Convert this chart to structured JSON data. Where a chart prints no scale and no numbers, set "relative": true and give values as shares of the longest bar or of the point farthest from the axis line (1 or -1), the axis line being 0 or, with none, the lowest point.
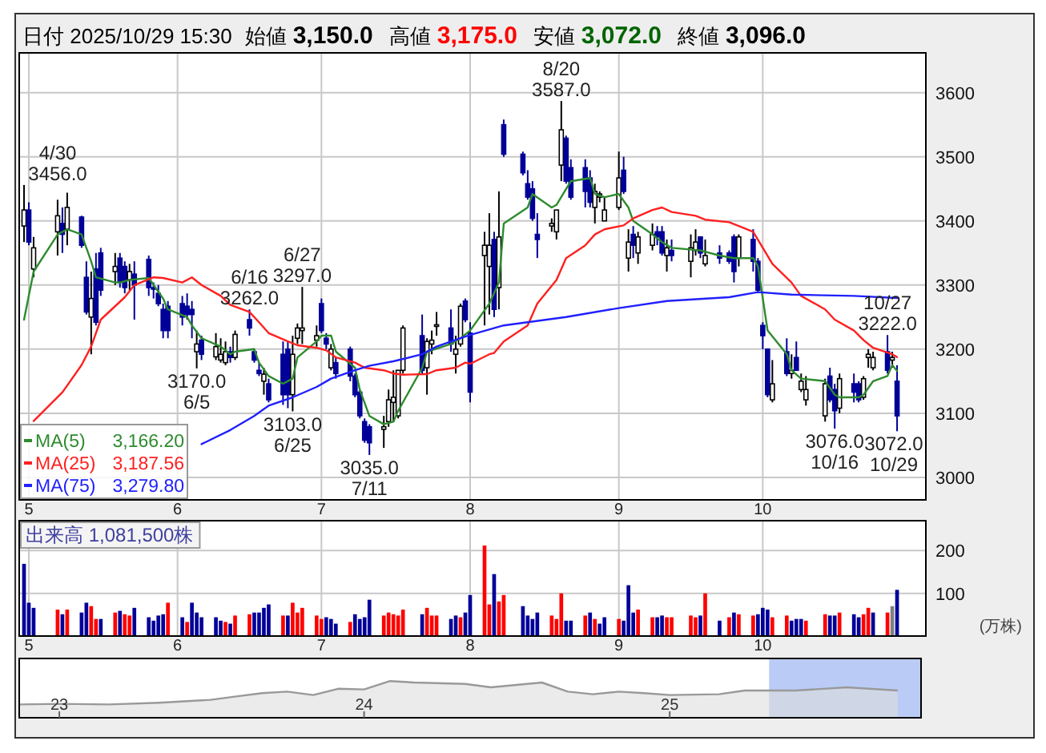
{
  "chart_data": [
    {
      "type": "candlestick",
      "title": "日付 2025/10/29 15:30",
      "grid": true,
      "legend": "bottom left",
      "annotations": [
        "始値 3,150.0",
        "高値 3,175.0",
        "安値 3,072.0",
        "終値 3,096.0",
        {
          "text": "4/30\n3456.0",
          "x": "2025-04-30",
          "y": 3456
        },
        {
          "text": "3170.0\n6/5",
          "x": "2025-06-05",
          "y": 3170
        },
        {
          "text": "6/16\n3262.0",
          "x": "2025-06-16",
          "y": 3262
        },
        {
          "text": "3103.0\n6/25",
          "x": "2025-06-25",
          "y": 3103
        },
        {
          "text": "6/27\n3297.0",
          "x": "2025-06-27",
          "y": 3297
        },
        {
          "text": "3035.0\n7/11",
          "x": "2025-07-11",
          "y": 3035
        },
        {
          "text": "8/20\n3587.0",
          "x": "2025-08-20",
          "y": 3587
        },
        {
          "text": "10/27\n3222.0",
          "x": "2025-10-27",
          "y": 3222
        },
        {
          "text": "3076.0\n10/16",
          "x": "2025-10-16",
          "y": 3076
        },
        {
          "text": "3072.0\n10/29",
          "x": "2025-10-29",
          "y": 3072
        }
      ],
      "x": [
        "2025-04-30",
        "2025-05-01",
        "2025-05-02",
        "2025-05-07",
        "2025-05-08",
        "2025-05-09",
        "2025-05-12",
        "2025-05-13",
        "2025-05-14",
        "2025-05-15",
        "2025-05-16",
        "2025-05-19",
        "2025-05-20",
        "2025-05-21",
        "2025-05-22",
        "2025-05-23",
        "2025-05-26",
        "2025-05-27",
        "2025-05-28",
        "2025-05-29",
        "2025-05-30",
        "2025-06-02",
        "2025-06-03",
        "2025-06-04",
        "2025-06-05",
        "2025-06-06",
        "2025-06-09",
        "2025-06-10",
        "2025-06-11",
        "2025-06-12",
        "2025-06-13",
        "2025-06-16",
        "2025-06-17",
        "2025-06-18",
        "2025-06-19",
        "2025-06-20",
        "2025-06-23",
        "2025-06-24",
        "2025-06-25",
        "2025-06-26",
        "2025-06-27",
        "2025-06-30",
        "2025-07-01",
        "2025-07-02",
        "2025-07-03",
        "2025-07-04",
        "2025-07-07",
        "2025-07-08",
        "2025-07-09",
        "2025-07-10",
        "2025-07-11",
        "2025-07-14",
        "2025-07-15",
        "2025-07-16",
        "2025-07-17",
        "2025-07-18",
        "2025-07-22",
        "2025-07-23",
        "2025-07-24",
        "2025-07-25",
        "2025-07-28",
        "2025-07-29",
        "2025-07-30",
        "2025-07-31",
        "2025-08-01",
        "2025-08-04",
        "2025-08-05",
        "2025-08-06",
        "2025-08-07",
        "2025-08-08",
        "2025-08-12",
        "2025-08-13",
        "2025-08-14",
        "2025-08-15",
        "2025-08-18",
        "2025-08-19",
        "2025-08-20",
        "2025-08-21",
        "2025-08-22",
        "2025-08-25",
        "2025-08-26",
        "2025-08-27",
        "2025-08-28",
        "2025-08-29",
        "2025-09-01",
        "2025-09-02",
        "2025-09-03",
        "2025-09-04",
        "2025-09-05",
        "2025-09-08",
        "2025-09-09",
        "2025-09-10",
        "2025-09-11",
        "2025-09-12",
        "2025-09-16",
        "2025-09-17",
        "2025-09-18",
        "2025-09-19",
        "2025-09-22",
        "2025-09-24",
        "2025-09-25",
        "2025-09-26",
        "2025-09-29",
        "2025-09-30",
        "2025-10-01",
        "2025-10-02",
        "2025-10-03",
        "2025-10-06",
        "2025-10-07",
        "2025-10-08",
        "2025-10-09",
        "2025-10-10",
        "2025-10-14",
        "2025-10-15",
        "2025-10-16",
        "2025-10-17",
        "2025-10-20",
        "2025-10-21",
        "2025-10-22",
        "2025-10-23",
        "2025-10-24",
        "2025-10-27",
        "2025-10-28",
        "2025-10-29"
      ],
      "ohlc": [
        [
          3392,
          3456,
          3367,
          3417
        ],
        [
          3417,
          3429,
          3362,
          3367
        ],
        [
          3325,
          3375,
          3312,
          3358
        ],
        [
          3383,
          3433,
          3346,
          3408
        ],
        [
          3396,
          3421,
          3350,
          3379
        ],
        [
          3387,
          3444,
          3362,
          3421
        ],
        [
          3406,
          3408,
          3358,
          3362
        ],
        [
          3312,
          3337,
          3254,
          3258
        ],
        [
          3250,
          3321,
          3192,
          3279
        ],
        [
          3325,
          3350,
          3237,
          3242
        ],
        [
          3350,
          3358,
          3283,
          3292
        ],
        [
          3321,
          3350,
          3300,
          3329
        ],
        [
          3342,
          3350,
          3296,
          3304
        ],
        [
          3329,
          3337,
          3287,
          3296
        ],
        [
          3308,
          3333,
          3292,
          3321
        ],
        [
          3317,
          3337,
          3246,
          3300
        ],
        [
          3340,
          3346,
          3283,
          3296
        ],
        [
          3296,
          3304,
          3279,
          3294
        ],
        [
          3287,
          3300,
          3267,
          3271
        ],
        [
          3262,
          3271,
          3217,
          3229
        ],
        [
          3267,
          3275,
          3217,
          3229
        ],
        [
          3271,
          3283,
          3237,
          3250
        ],
        [
          3267,
          3287,
          3246,
          3254
        ],
        [
          3262,
          3275,
          3217,
          3254
        ],
        [
          3196,
          3229,
          3170,
          3208
        ],
        [
          3214,
          3221,
          3183,
          3192
        ],
        [
          3188,
          3225,
          3183,
          3204
        ],
        [
          3183,
          3217,
          3179,
          3192
        ],
        [
          3179,
          3212,
          3175,
          3196
        ],
        [
          3196,
          3204,
          3179,
          3187
        ],
        [
          3187,
          3229,
          3183,
          3223
        ],
        [
          3246,
          3262,
          3221,
          3233
        ],
        [
          3196,
          3200,
          3179,
          3183
        ],
        [
          3167,
          3179,
          3158,
          3162
        ],
        [
          3150,
          3171,
          3129,
          3161
        ],
        [
          3146,
          3154,
          3117,
          3121
        ],
        [
          3192,
          3212,
          3113,
          3129
        ],
        [
          3200,
          3212,
          3108,
          3129
        ],
        [
          3129,
          3221,
          3103,
          3192
        ],
        [
          3217,
          3240,
          3208,
          3233
        ],
        [
          3229,
          3297,
          3208,
          3233
        ],
        [
          3214,
          3237,
          3204,
          3221
        ],
        [
          3271,
          3279,
          3225,
          3229
        ],
        [
          3217,
          3225,
          3200,
          3208
        ],
        [
          3171,
          3208,
          3167,
          3200
        ],
        [
          3179,
          3187,
          3154,
          3162
        ],
        [
          3200,
          3204,
          3150,
          3158
        ],
        [
          3158,
          3162,
          3125,
          3129
        ],
        [
          3133,
          3137,
          3092,
          3096
        ],
        [
          3087,
          3092,
          3054,
          3058
        ],
        [
          3079,
          3083,
          3035,
          3054
        ],
        [
          3075,
          3096,
          3046,
          3079
        ],
        [
          3087,
          3137,
          3079,
          3121
        ],
        [
          3117,
          3167,
          3087,
          3125
        ],
        [
          3096,
          3167,
          3092,
          3167
        ],
        [
          3167,
          3237,
          3162,
          3233
        ],
        [
          3221,
          3254,
          3162,
          3167
        ],
        [
          3171,
          3217,
          3129,
          3212
        ],
        [
          3208,
          3229,
          3192,
          3214
        ],
        [
          3237,
          3258,
          3221,
          3238
        ],
        [
          3233,
          3262,
          3196,
          3208
        ],
        [
          3192,
          3221,
          3162,
          3200
        ],
        [
          3208,
          3271,
          3204,
          3267
        ],
        [
          3275,
          3279,
          3242,
          3246
        ],
        [
          3225,
          3242,
          3117,
          3133
        ],
        [
          3346,
          3383,
          3237,
          3362
        ],
        [
          3329,
          3412,
          3254,
          3362
        ],
        [
          3371,
          3383,
          3250,
          3262
        ],
        [
          3296,
          3446,
          3262,
          3375
        ],
        [
          3550,
          3558,
          3500,
          3504
        ],
        [
          3504,
          3508,
          3471,
          3475
        ],
        [
          3458,
          3479,
          3433,
          3437
        ],
        [
          3450,
          3462,
          3400,
          3404
        ],
        [
          3379,
          3412,
          3342,
          3371
        ],
        [
          3392,
          3404,
          3383,
          3396
        ],
        [
          3383,
          3417,
          3371,
          3417
        ],
        [
          3487,
          3587,
          3462,
          3542
        ],
        [
          3529,
          3533,
          3458,
          3462
        ],
        [
          3483,
          3496,
          3433,
          3437
        ],
        [
          3483,
          3496,
          3421,
          3446
        ],
        [
          3467,
          3479,
          3421,
          3429
        ],
        [
          3421,
          3458,
          3396,
          3446
        ],
        [
          3437,
          3446,
          3429,
          3442
        ],
        [
          3400,
          3437,
          3400,
          3417
        ],
        [
          3421,
          3508,
          3417,
          3467
        ],
        [
          3479,
          3500,
          3442,
          3446
        ],
        [
          3342,
          3387,
          3321,
          3367
        ],
        [
          3379,
          3392,
          3342,
          3362
        ],
        [
          3350,
          3383,
          3333,
          3375
        ],
        [
          3362,
          3396,
          3354,
          3379
        ],
        [
          3383,
          3392,
          3362,
          3375
        ],
        [
          3383,
          3392,
          3346,
          3350
        ],
        [
          3346,
          3371,
          3321,
          3358
        ],
        [
          3354,
          3371,
          3337,
          3346
        ],
        [
          3337,
          3379,
          3312,
          3358
        ],
        [
          3354,
          3387,
          3346,
          3367
        ],
        [
          3375,
          3375,
          3342,
          3350
        ],
        [
          3333,
          3371,
          3329,
          3346
        ],
        [
          3350,
          3362,
          3333,
          3342
        ],
        [
          3350,
          3354,
          3333,
          3337
        ],
        [
          3375,
          3379,
          3304,
          3321
        ],
        [
          3342,
          3379,
          3329,
          3375
        ],
        [
          3371,
          3387,
          3321,
          3337
        ],
        [
          3337,
          3342,
          3287,
          3292
        ],
        [
          3237,
          3242,
          3200,
          3221
        ],
        [
          3200,
          3200,
          3125,
          3129
        ],
        [
          3121,
          3183,
          3117,
          3146
        ],
        [
          3196,
          3217,
          3158,
          3162
        ],
        [
          3162,
          3192,
          3154,
          3167
        ],
        [
          3187,
          3212,
          3167,
          3167
        ],
        [
          3137,
          3162,
          3133,
          3150
        ],
        [
          3121,
          3158,
          3112,
          3137
        ],
        [
          3096,
          3154,
          3087,
          3146
        ],
        [
          3158,
          3171,
          3117,
          3121
        ],
        [
          3137,
          3146,
          3076,
          3104
        ],
        [
          3108,
          3162,
          3100,
          3154
        ],
        [
          3146,
          3162,
          3117,
          3133
        ],
        [
          3146,
          3150,
          3117,
          3121
        ],
        [
          3125,
          3158,
          3121,
          3154
        ],
        [
          3187,
          3200,
          3171,
          3192
        ],
        [
          3171,
          3196,
          3167,
          3187
        ],
        [
          3196,
          3222,
          3162,
          3167
        ],
        [
          3183,
          3196,
          3171,
          3187
        ],
        [
          3150,
          3175,
          3072,
          3096
        ]
      ],
      "series": [
        {
          "name": "MA(5) 3,166.20",
          "type": "line",
          "color": "#2e8b2e",
          "x": [
            "2025-04-30",
            "2025-05-02",
            "2025-05-07",
            "2025-05-09",
            "2025-05-12",
            "2025-05-14",
            "2025-05-15",
            "2025-05-19",
            "2025-05-20",
            "2025-05-22",
            "2025-05-26",
            "2025-05-27",
            "2025-05-29",
            "2025-05-30",
            "2025-06-03",
            "2025-06-04",
            "2025-06-06",
            "2025-06-10",
            "2025-06-12",
            "2025-06-13",
            "2025-06-17",
            "2025-06-18",
            "2025-06-20",
            "2025-06-23",
            "2025-06-25",
            "2025-06-26",
            "2025-06-30",
            "2025-07-01",
            "2025-07-03",
            "2025-07-04",
            "2025-07-08",
            "2025-07-09",
            "2025-07-11",
            "2025-07-14",
            "2025-07-16",
            "2025-07-17",
            "2025-07-22",
            "2025-07-23",
            "2025-07-28",
            "2025-07-30",
            "2025-08-01",
            "2025-08-05",
            "2025-08-07",
            "2025-08-08",
            "2025-08-13",
            "2025-08-14",
            "2025-08-18",
            "2025-08-19",
            "2025-08-21",
            "2025-08-22",
            "2025-08-26",
            "2025-08-27",
            "2025-08-29",
            "2025-09-01",
            "2025-09-03",
            "2025-09-04",
            "2025-09-08",
            "2025-09-10",
            "2025-09-12",
            "2025-09-18",
            "2025-09-22",
            "2025-09-25",
            "2025-09-29",
            "2025-09-30",
            "2025-10-01",
            "2025-10-02",
            "2025-10-06",
            "2025-10-07",
            "2025-10-09",
            "2025-10-14",
            "2025-10-16",
            "2025-10-17",
            "2025-10-21",
            "2025-10-22",
            "2025-10-24",
            "2025-10-27",
            "2025-10-28",
            "2025-10-29"
          ],
          "values": [
            3246,
            3321,
            3379,
            3387,
            3379,
            3337,
            3312,
            3304,
            3304,
            3308,
            3311,
            3300,
            3279,
            3262,
            3250,
            3237,
            3217,
            3204,
            3192,
            3196,
            3200,
            3179,
            3158,
            3146,
            3154,
            3187,
            3212,
            3221,
            3221,
            3196,
            3171,
            3137,
            3096,
            3083,
            3087,
            3104,
            3171,
            3196,
            3208,
            3217,
            3229,
            3271,
            3304,
            3396,
            3421,
            3442,
            3421,
            3425,
            3450,
            3462,
            3467,
            3442,
            3437,
            3442,
            3421,
            3400,
            3379,
            3367,
            3358,
            3354,
            3346,
            3342,
            3342,
            3329,
            3279,
            3229,
            3192,
            3167,
            3154,
            3150,
            3129,
            3125,
            3125,
            3129,
            3150,
            3158,
            3175,
            3166.2
          ]
        },
        {
          "name": "MA(25) 3,187.56",
          "type": "line",
          "color": "#ff2020",
          "x": [
            "2025-05-02",
            "2025-05-08",
            "2025-05-12",
            "2025-05-14",
            "2025-05-16",
            "2025-05-21",
            "2025-05-23",
            "2025-05-27",
            "2025-05-29",
            "2025-06-02",
            "2025-06-04",
            "2025-06-06",
            "2025-06-10",
            "2025-06-12",
            "2025-06-16",
            "2025-06-18",
            "2025-06-20",
            "2025-06-24",
            "2025-06-26",
            "2025-06-30",
            "2025-07-02",
            "2025-07-04",
            "2025-07-08",
            "2025-07-10",
            "2025-07-14",
            "2025-07-16",
            "2025-07-18",
            "2025-07-23",
            "2025-07-25",
            "2025-07-29",
            "2025-07-31",
            "2025-08-01",
            "2025-08-05",
            "2025-08-06",
            "2025-08-08",
            "2025-08-13",
            "2025-08-15",
            "2025-08-19",
            "2025-08-21",
            "2025-08-25",
            "2025-08-27",
            "2025-08-29",
            "2025-09-02",
            "2025-09-04",
            "2025-09-08",
            "2025-09-10",
            "2025-09-12",
            "2025-09-17",
            "2025-09-19",
            "2025-09-24",
            "2025-09-26",
            "2025-09-29",
            "2025-10-01",
            "2025-10-03",
            "2025-10-07",
            "2025-10-09",
            "2025-10-14",
            "2025-10-16",
            "2025-10-20",
            "2025-10-22",
            "2025-10-24",
            "2025-10-28",
            "2025-10-29"
          ],
          "values": [
            3088,
            3133,
            3175,
            3204,
            3246,
            3281,
            3300,
            3312,
            3311,
            3304,
            3312,
            3300,
            3283,
            3269,
            3258,
            3242,
            3225,
            3212,
            3206,
            3202,
            3198,
            3187,
            3179,
            3171,
            3167,
            3162,
            3160,
            3161,
            3167,
            3171,
            3179,
            3177,
            3192,
            3194,
            3212,
            3237,
            3271,
            3308,
            3342,
            3362,
            3379,
            3387,
            3393,
            3404,
            3417,
            3421,
            3414,
            3408,
            3402,
            3398,
            3392,
            3383,
            3358,
            3333,
            3304,
            3283,
            3262,
            3246,
            3229,
            3214,
            3202,
            3192,
            3187.56
          ]
        },
        {
          "name": "MA(75) 3,279.80",
          "type": "line",
          "color": "#2020ff",
          "x": [
            "2025-06-06",
            "2025-06-12",
            "2025-06-17",
            "2025-06-20",
            "2025-06-25",
            "2025-06-30",
            "2025-07-03",
            "2025-07-08",
            "2025-07-11",
            "2025-07-16",
            "2025-07-22",
            "2025-07-25",
            "2025-07-30",
            "2025-08-01",
            "2025-08-08",
            "2025-08-21",
            "2025-09-01",
            "2025-09-11",
            "2025-09-24",
            "2025-09-30",
            "2025-10-07",
            "2025-10-20",
            "2025-10-29"
          ],
          "values": [
            3052,
            3074,
            3096,
            3112,
            3125,
            3141,
            3154,
            3167,
            3174,
            3181,
            3192,
            3204,
            3217,
            3222,
            3237,
            3250,
            3264,
            3275,
            3281,
            3289,
            3285,
            3283,
            3279.8
          ]
        }
      ],
      "xlim": [
        "2025-04-29",
        "2025-11-04"
      ],
      "xticks": [
        {
          "value": "2025-05-01",
          "label": "5"
        },
        {
          "value": "2025-06-01",
          "label": "6"
        },
        {
          "value": "2025-07-01",
          "label": "7"
        },
        {
          "value": "2025-08-01",
          "label": "8"
        },
        {
          "value": "2025-09-01",
          "label": "9"
        },
        {
          "value": "2025-10-01",
          "label": "10"
        }
      ],
      "ylim": [
        2965,
        3662
      ],
      "yticks": [
        3000,
        3100,
        3200,
        3300,
        3400,
        3500,
        3600
      ]
    },
    {
      "type": "bar",
      "title": "出来高 1,081,500株",
      "ylabel": "(万株)",
      "grid": true,
      "x": [
        "2025-04-30",
        "2025-05-01",
        "2025-05-02",
        "2025-05-07",
        "2025-05-08",
        "2025-05-09",
        "2025-05-12",
        "2025-05-13",
        "2025-05-14",
        "2025-05-15",
        "2025-05-16",
        "2025-05-19",
        "2025-05-20",
        "2025-05-21",
        "2025-05-22",
        "2025-05-23",
        "2025-05-26",
        "2025-05-27",
        "2025-05-28",
        "2025-05-29",
        "2025-05-30",
        "2025-06-02",
        "2025-06-03",
        "2025-06-04",
        "2025-06-05",
        "2025-06-06",
        "2025-06-09",
        "2025-06-10",
        "2025-06-11",
        "2025-06-12",
        "2025-06-13",
        "2025-06-16",
        "2025-06-17",
        "2025-06-18",
        "2025-06-19",
        "2025-06-20",
        "2025-06-23",
        "2025-06-24",
        "2025-06-25",
        "2025-06-26",
        "2025-06-27",
        "2025-06-30",
        "2025-07-01",
        "2025-07-02",
        "2025-07-03",
        "2025-07-04",
        "2025-07-07",
        "2025-07-08",
        "2025-07-09",
        "2025-07-10",
        "2025-07-11",
        "2025-07-14",
        "2025-07-15",
        "2025-07-16",
        "2025-07-17",
        "2025-07-18",
        "2025-07-22",
        "2025-07-23",
        "2025-07-24",
        "2025-07-25",
        "2025-07-28",
        "2025-07-29",
        "2025-07-30",
        "2025-07-31",
        "2025-08-01",
        "2025-08-04",
        "2025-08-05",
        "2025-08-06",
        "2025-08-07",
        "2025-08-08",
        "2025-08-12",
        "2025-08-13",
        "2025-08-14",
        "2025-08-15",
        "2025-08-18",
        "2025-08-19",
        "2025-08-20",
        "2025-08-21",
        "2025-08-22",
        "2025-08-25",
        "2025-08-26",
        "2025-08-27",
        "2025-08-28",
        "2025-08-29",
        "2025-09-01",
        "2025-09-02",
        "2025-09-03",
        "2025-09-04",
        "2025-09-05",
        "2025-09-08",
        "2025-09-09",
        "2025-09-10",
        "2025-09-11",
        "2025-09-12",
        "2025-09-16",
        "2025-09-17",
        "2025-09-18",
        "2025-09-19",
        "2025-09-22",
        "2025-09-24",
        "2025-09-25",
        "2025-09-26",
        "2025-09-29",
        "2025-09-30",
        "2025-10-01",
        "2025-10-02",
        "2025-10-03",
        "2025-10-06",
        "2025-10-07",
        "2025-10-08",
        "2025-10-09",
        "2025-10-10",
        "2025-10-14",
        "2025-10-15",
        "2025-10-16",
        "2025-10-17",
        "2025-10-20",
        "2025-10-21",
        "2025-10-22",
        "2025-10-23",
        "2025-10-24",
        "2025-10-27",
        "2025-10-28",
        "2025-10-29"
      ],
      "values": [
        169,
        78,
        66,
        62,
        51,
        62,
        55,
        78,
        70,
        40,
        40,
        55,
        59,
        51,
        48,
        66,
        44,
        36,
        48,
        51,
        78,
        44,
        33,
        78,
        55,
        44,
        44,
        36,
        33,
        29,
        48,
        51,
        55,
        55,
        66,
        74,
        48,
        48,
        78,
        55,
        66,
        48,
        40,
        44,
        40,
        29,
        33,
        51,
        40,
        44,
        85,
        48,
        55,
        51,
        48,
        62,
        51,
        66,
        48,
        48,
        40,
        48,
        44,
        55,
        96,
        212,
        74,
        145,
        81,
        96,
        70,
        48,
        40,
        55,
        48,
        40,
        100,
        36,
        36,
        48,
        55,
        40,
        29,
        44,
        40,
        36,
        119,
        55,
        62,
        44,
        44,
        48,
        44,
        44,
        48,
        44,
        48,
        100,
        36,
        44,
        55,
        51,
        48,
        51,
        66,
        62,
        44,
        48,
        36,
        40,
        40,
        36,
        51,
        48,
        48,
        55,
        51,
        44,
        51,
        66,
        55,
        55,
        70,
        108.15
      ],
      "colors": [
        "#000099",
        "#000099",
        "#000099",
        "#ff0000",
        "#000099",
        "#ff0000",
        "#000099",
        "#000099",
        "#ff0000",
        "#ff0000",
        "#000099",
        "#ff0000",
        "#000099",
        "#ff0000",
        "#ff0000",
        "#000099",
        "#000099",
        "#000099",
        "#000099",
        "#000099",
        "#ff0000",
        "#000099",
        "#ff0000",
        "#000099",
        "#000099",
        "#000099",
        "#000099",
        "#000099",
        "#ff0000",
        "#000099",
        "#ff0000",
        "#ff0000",
        "#000099",
        "#000099",
        "#000099",
        "#000099",
        "#ff0000",
        "#000099",
        "#ff0000",
        "#ff0000",
        "#ff0000",
        "#ff0000",
        "#ff0000",
        "#000099",
        "#000099",
        "#000099",
        "#ff0000",
        "#000099",
        "#000099",
        "#000099",
        "#000099",
        "#ff0000",
        "#ff0000",
        "#ff0000",
        "#ff0000",
        "#ff0000",
        "#000099",
        "#ff0000",
        "#ff0000",
        "#ff0000",
        "#000099",
        "#000099",
        "#ff0000",
        "#000099",
        "#000099",
        "#ff0000",
        "#ff0000",
        "#000099",
        "#ff0000",
        "#ff0000",
        "#000099",
        "#000099",
        "#000099",
        "#000099",
        "#ff0000",
        "#ff0000",
        "#ff0000",
        "#000099",
        "#000099",
        "#ff0000",
        "#000099",
        "#ff0000",
        "#000099",
        "#000099",
        "#ff0000",
        "#000099",
        "#000099",
        "#000099",
        "#ff0000",
        "#ff0000",
        "#000099",
        "#000099",
        "#ff0000",
        "#ff0000",
        "#ff0000",
        "#ff0000",
        "#000099",
        "#ff0000",
        "#000099",
        "#ff0000",
        "#000099",
        "#ff0000",
        "#ff0000",
        "#000099",
        "#000099",
        "#000099",
        "#ff0000",
        "#ff0000",
        "#000099",
        "#000099",
        "#000099",
        "#ff0000",
        "#ff0000",
        "#000099",
        "#000099",
        "#ff0000",
        "#000099",
        "#000099",
        "#ff0000",
        "#ff0000",
        "#000099",
        "#ff0000",
        "#808080",
        "#000099"
      ],
      "xlim": [
        "2025-04-29",
        "2025-11-04"
      ],
      "xticks": [
        {
          "value": "2025-05-01",
          "label": "5"
        },
        {
          "value": "2025-06-01",
          "label": "6"
        },
        {
          "value": "2025-07-01",
          "label": "7"
        },
        {
          "value": "2025-08-01",
          "label": "8"
        },
        {
          "value": "2025-09-01",
          "label": "9"
        },
        {
          "value": "2025-10-01",
          "label": "10"
        }
      ],
      "ylim": [
        0,
        270
      ],
      "yticks": [
        100,
        200
      ]
    },
    {
      "type": "area",
      "relative": true,
      "x": [
        "2022-11-15",
        "2023-01",
        "2023-03",
        "2023-05",
        "2023-07",
        "2023-08",
        "2023-09",
        "2023-10",
        "2023-11",
        "2023-12",
        "2024-01",
        "2024-02",
        "2024-03",
        "2024-05",
        "2024-06",
        "2024-08",
        "2024-09",
        "2024-10",
        "2024-11",
        "2024-12",
        "2025-01",
        "2025-03",
        "2025-04",
        "2025-06",
        "2025-08",
        "2025-10"
      ],
      "values": [
        0.36,
        0.38,
        0.36,
        0.41,
        0.49,
        0.58,
        0.67,
        0.71,
        0.62,
        0.79,
        0.77,
        1.0,
        0.96,
        0.92,
        0.83,
        0.96,
        0.71,
        0.64,
        0.71,
        0.67,
        0.62,
        0.64,
        0.74,
        0.74,
        0.83,
        0.74
      ],
      "bands": [
        {
          "axis": "x",
          "from": "2025-04-30",
          "to": "2025-10-29",
          "color": "#b3c6f5"
        }
      ],
      "xlim": [
        "2022-11-14",
        "2025-10-29"
      ],
      "xticks": [
        {
          "value": "2023-01-01",
          "label": "23"
        },
        {
          "value": "2024-01-01",
          "label": "24"
        },
        {
          "value": "2025-01-01",
          "label": "25"
        }
      ]
    }
  ]
}
